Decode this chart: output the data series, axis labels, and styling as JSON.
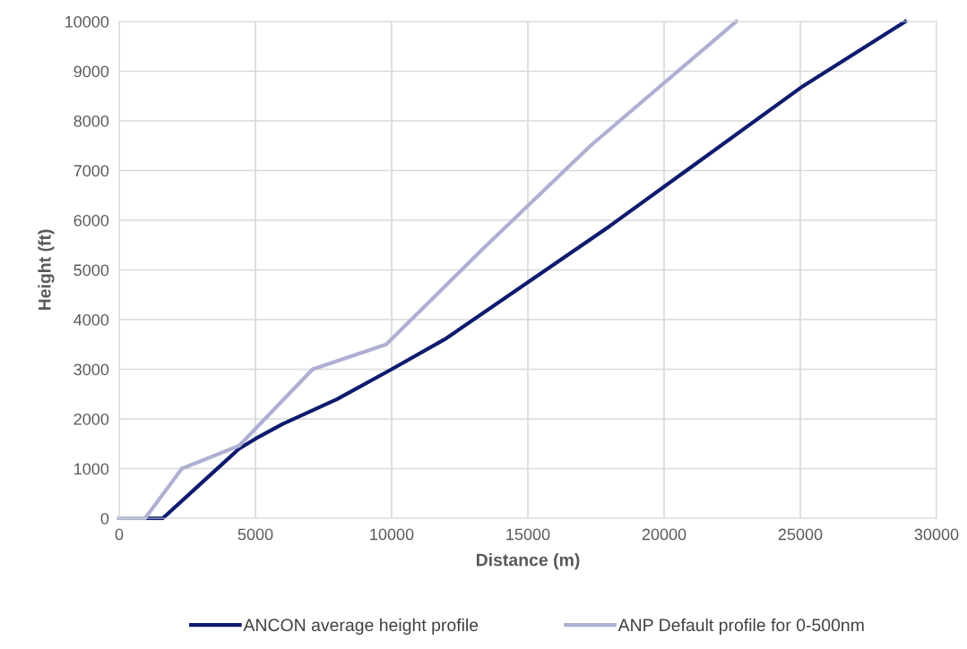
{
  "chart_data": {
    "type": "line",
    "xlabel": "Distance (m)",
    "ylabel": "Height (ft)",
    "series": [
      {
        "name": "ANCON average height profile",
        "color": "#0f1b6e",
        "x": [
          0,
          1600,
          3000,
          4400,
          5000,
          6000,
          8000,
          10000,
          12000,
          18000,
          25100,
          28850
        ],
        "values": [
          0,
          0,
          700,
          1400,
          1600,
          1900,
          2400,
          3000,
          3620,
          5880,
          8700,
          10000
        ]
      },
      {
        "name": "ANP Default profile for 0-500nm",
        "color": "#aeb0d2",
        "x": [
          0,
          950,
          2300,
          4400,
          7100,
          9800,
          13400,
          17300,
          22650
        ],
        "values": [
          0,
          0,
          1000,
          1460,
          3000,
          3500,
          5450,
          7500,
          10000
        ]
      }
    ],
    "xlim": [
      0,
      30000
    ],
    "xticks": [
      0,
      5000,
      10000,
      15000,
      20000,
      25000,
      30000
    ],
    "ylim": [
      0,
      10000
    ],
    "yticks": [
      0,
      1000,
      2000,
      3000,
      4000,
      5000,
      6000,
      7000,
      8000,
      9000,
      10000
    ],
    "grid": true,
    "legend": "bottom",
    "marker": "none",
    "line_style": "solid"
  }
}
